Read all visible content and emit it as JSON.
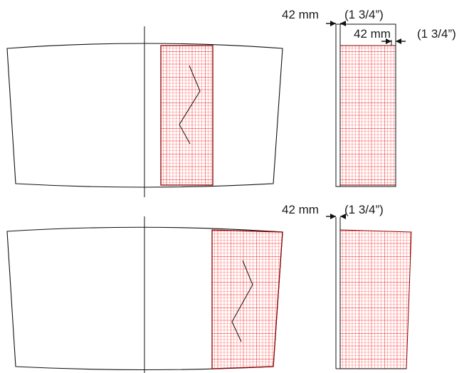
{
  "labels": {
    "top_left_dim": "42 mm",
    "top_left_imperial": "(1 3/4”)",
    "top_right_dim": "42 mm",
    "top_right_imperial": "(1 3/4”)",
    "bottom_dim": "42 mm",
    "bottom_imperial": "(1 3/4”)"
  },
  "colors": {
    "outline": "#111111",
    "grid_fine": "#ff8a8a",
    "grid_major": "#e31b1b",
    "band_edge": "#8a0000"
  }
}
